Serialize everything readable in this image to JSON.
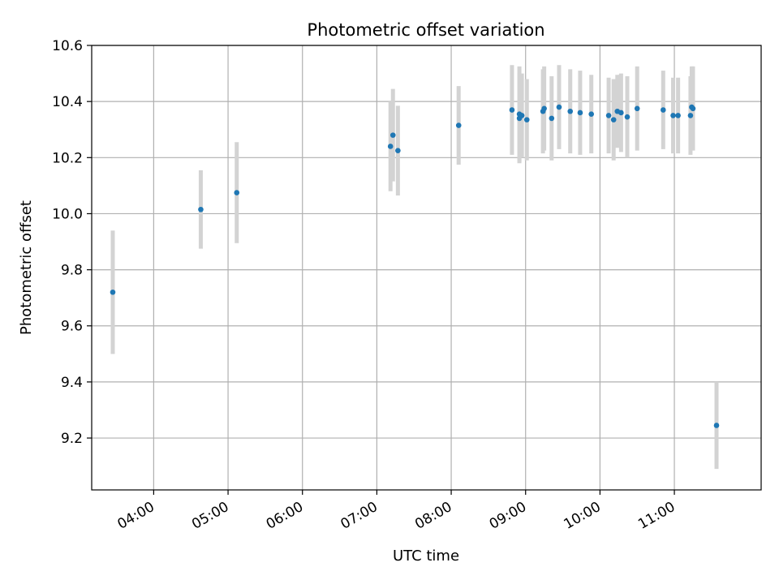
{
  "chart_data": {
    "type": "scatter",
    "title": "Photometric offset variation",
    "xlabel": "UTC time",
    "ylabel": "Photometric offset",
    "grid": true,
    "ylim": [
      9.015,
      10.6
    ],
    "xlim": [
      "03:10",
      "12:10"
    ],
    "x_ticks": [
      "04:00",
      "05:00",
      "06:00",
      "07:00",
      "08:00",
      "09:00",
      "10:00",
      "11:00"
    ],
    "y_ticks": [
      "9.2",
      "9.4",
      "9.6",
      "9.8",
      "10.0",
      "10.2",
      "10.4",
      "10.6"
    ],
    "colors": {
      "point": "#1f77b4",
      "error_bar": "#d3d3d3",
      "grid": "#b0b0b0"
    },
    "points": [
      {
        "x": "03:27",
        "y": 9.72,
        "err": 0.22
      },
      {
        "x": "04:38",
        "y": 10.015,
        "err": 0.14
      },
      {
        "x": "05:07",
        "y": 10.075,
        "err": 0.18
      },
      {
        "x": "07:11",
        "y": 10.24,
        "err": 0.16
      },
      {
        "x": "07:13",
        "y": 10.28,
        "err": 0.165
      },
      {
        "x": "07:17",
        "y": 10.225,
        "err": 0.16
      },
      {
        "x": "08:06",
        "y": 10.315,
        "err": 0.14
      },
      {
        "x": "08:49",
        "y": 10.37,
        "err": 0.16
      },
      {
        "x": "08:55",
        "y": 10.355,
        "err": 0.17
      },
      {
        "x": "08:55",
        "y": 10.34,
        "err": 0.16
      },
      {
        "x": "08:57",
        "y": 10.35,
        "err": 0.15
      },
      {
        "x": "09:01",
        "y": 10.335,
        "err": 0.145
      },
      {
        "x": "09:14",
        "y": 10.365,
        "err": 0.15
      },
      {
        "x": "09:15",
        "y": 10.375,
        "err": 0.15
      },
      {
        "x": "09:21",
        "y": 10.34,
        "err": 0.15
      },
      {
        "x": "09:27",
        "y": 10.38,
        "err": 0.15
      },
      {
        "x": "09:36",
        "y": 10.365,
        "err": 0.15
      },
      {
        "x": "09:44",
        "y": 10.36,
        "err": 0.15
      },
      {
        "x": "09:53",
        "y": 10.355,
        "err": 0.14
      },
      {
        "x": "10:07",
        "y": 10.35,
        "err": 0.135
      },
      {
        "x": "10:11",
        "y": 10.335,
        "err": 0.145
      },
      {
        "x": "10:14",
        "y": 10.365,
        "err": 0.13
      },
      {
        "x": "10:17",
        "y": 10.36,
        "err": 0.14
      },
      {
        "x": "10:22",
        "y": 10.345,
        "err": 0.145
      },
      {
        "x": "10:30",
        "y": 10.375,
        "err": 0.15
      },
      {
        "x": "10:51",
        "y": 10.37,
        "err": 0.14
      },
      {
        "x": "10:59",
        "y": 10.35,
        "err": 0.135
      },
      {
        "x": "11:03",
        "y": 10.35,
        "err": 0.135
      },
      {
        "x": "11:13",
        "y": 10.35,
        "err": 0.14
      },
      {
        "x": "11:14",
        "y": 10.38,
        "err": 0.145
      },
      {
        "x": "11:15",
        "y": 10.375,
        "err": 0.15
      },
      {
        "x": "11:34",
        "y": 9.245,
        "err": 0.155
      }
    ]
  }
}
